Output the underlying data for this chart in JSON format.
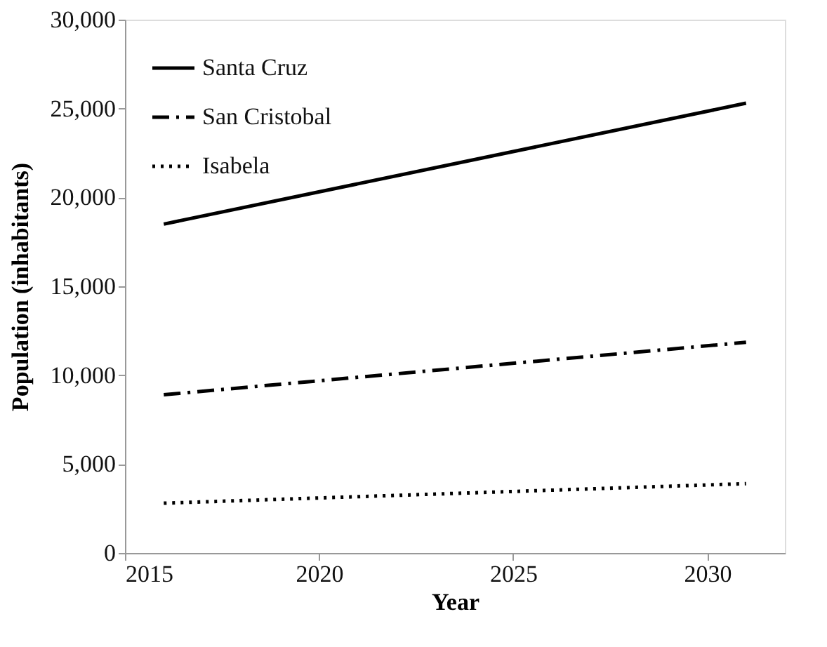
{
  "chart_data": {
    "type": "line",
    "xlabel": "Year",
    "ylabel": "Population (inhabitants)",
    "xlim": [
      2015,
      2032
    ],
    "xticks": [
      2015,
      2020,
      2025,
      2030
    ],
    "ylim": [
      0,
      30000
    ],
    "yticks": [
      0,
      {
        "value": 5000,
        "label": "5,000"
      },
      {
        "value": 10000,
        "label": "10,000"
      },
      {
        "value": 15000,
        "label": "15,000"
      },
      {
        "value": 20000,
        "label": "20,000"
      },
      {
        "value": 25000,
        "label": "25,000"
      },
      {
        "value": 30000,
        "label": "30,000"
      }
    ],
    "grid": false,
    "legend": "top left",
    "marker": "none",
    "x": [
      2016,
      2031
    ],
    "series": [
      {
        "name": "Santa Cruz",
        "color": "#000000",
        "line_style": "solid",
        "values": [
          18500,
          25300
        ]
      },
      {
        "name": "San Cristobal",
        "color": "#000000",
        "line_style": "dashdot",
        "values": [
          8900,
          11850
        ]
      },
      {
        "name": "Isabela",
        "color": "#000000",
        "line_style": "dotted",
        "values": [
          2800,
          3900
        ]
      }
    ]
  }
}
